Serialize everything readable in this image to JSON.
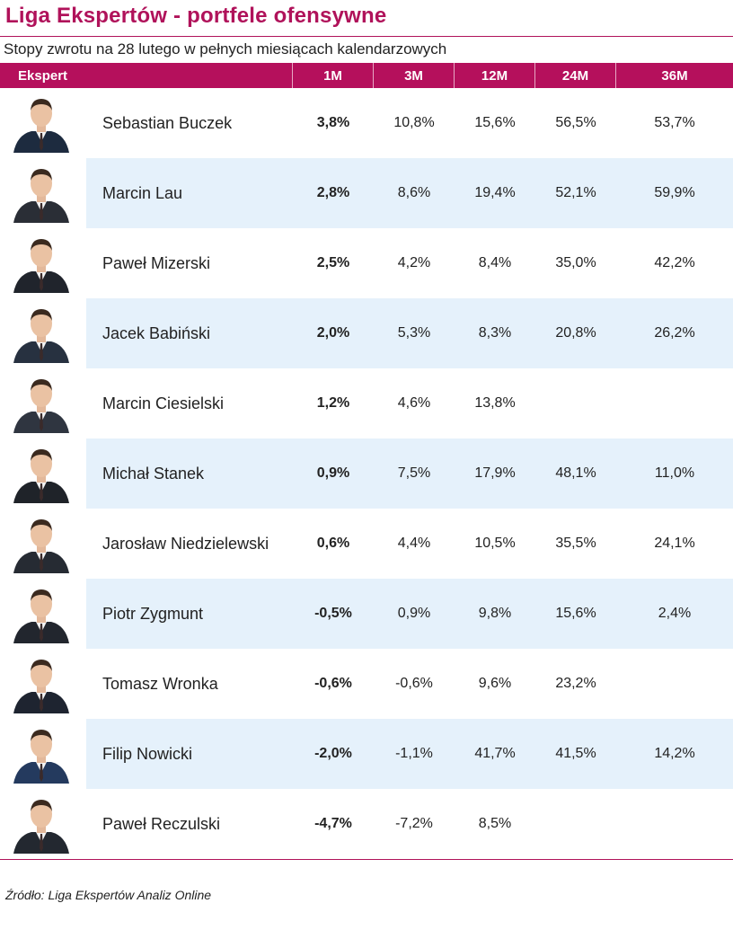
{
  "title": "Liga Ekspertów - portfele ofensywne",
  "subtitle": "Stopy zwrotu na 28 lutego w pełnych miesiącach kalendarzowych",
  "columns": [
    "Ekspert",
    "1M",
    "3M",
    "12M",
    "24M",
    "36M"
  ],
  "rows": [
    {
      "name": "Sebastian Buczek",
      "m1": "3,8%",
      "m3": "10,8%",
      "m12": "15,6%",
      "m24": "56,5%",
      "m36": "53,7%"
    },
    {
      "name": "Marcin Lau",
      "m1": "2,8%",
      "m3": "8,6%",
      "m12": "19,4%",
      "m24": "52,1%",
      "m36": "59,9%"
    },
    {
      "name": "Paweł Mizerski",
      "m1": "2,5%",
      "m3": "4,2%",
      "m12": "8,4%",
      "m24": "35,0%",
      "m36": "42,2%"
    },
    {
      "name": "Jacek Babiński",
      "m1": "2,0%",
      "m3": "5,3%",
      "m12": "8,3%",
      "m24": "20,8%",
      "m36": "26,2%"
    },
    {
      "name": "Marcin Ciesielski",
      "m1": "1,2%",
      "m3": "4,6%",
      "m12": "13,8%",
      "m24": "",
      "m36": ""
    },
    {
      "name": "Michał Stanek",
      "m1": "0,9%",
      "m3": "7,5%",
      "m12": "17,9%",
      "m24": "48,1%",
      "m36": "11,0%"
    },
    {
      "name": "Jarosław Niedzielewski",
      "m1": "0,6%",
      "m3": "4,4%",
      "m12": "10,5%",
      "m24": "35,5%",
      "m36": "24,1%"
    },
    {
      "name": "Piotr Zygmunt",
      "m1": "-0,5%",
      "m3": "0,9%",
      "m12": "9,8%",
      "m24": "15,6%",
      "m36": "2,4%"
    },
    {
      "name": "Tomasz Wronka",
      "m1": "-0,6%",
      "m3": "-0,6%",
      "m12": "9,6%",
      "m24": "23,2%",
      "m36": ""
    },
    {
      "name": "Filip Nowicki",
      "m1": "-2,0%",
      "m3": "-1,1%",
      "m12": "41,7%",
      "m24": "41,5%",
      "m36": "14,2%"
    },
    {
      "name": "Paweł Reczulski",
      "m1": "-4,7%",
      "m3": "-7,2%",
      "m12": "8,5%",
      "m24": "",
      "m36": ""
    }
  ],
  "source": "Źródło: Liga Ekspertów Analiz Online",
  "colors": {
    "accent": "#b5105c",
    "alt_row": "#e5f1fb"
  }
}
